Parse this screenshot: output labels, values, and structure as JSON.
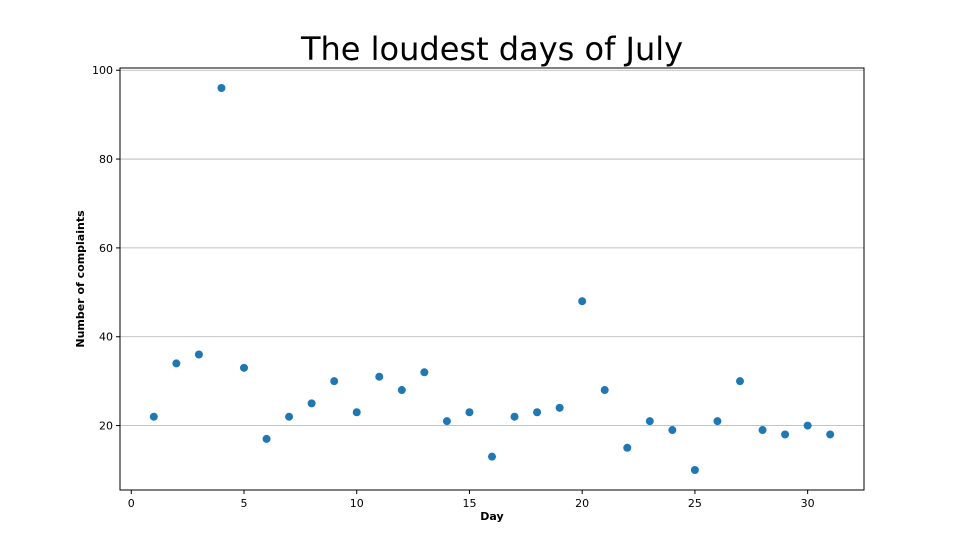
{
  "chart_data": {
    "type": "scatter",
    "title": "The loudest days of July",
    "xlabel": "Day",
    "ylabel": "Number of complaints",
    "xlim": [
      -0.5,
      32.5
    ],
    "ylim": [
      5.5,
      100.5
    ],
    "xticks": [
      0,
      5,
      10,
      15,
      20,
      25,
      30
    ],
    "yticks": [
      20,
      40,
      60,
      80,
      100
    ],
    "grid": "horizontal",
    "marker_color": "#1f77b4",
    "x": [
      1,
      2,
      3,
      4,
      5,
      6,
      7,
      8,
      9,
      10,
      11,
      12,
      13,
      14,
      15,
      16,
      17,
      18,
      19,
      20,
      21,
      22,
      23,
      24,
      25,
      26,
      27,
      28,
      29,
      30,
      31
    ],
    "y": [
      22,
      34,
      36,
      96,
      33,
      17,
      22,
      25,
      30,
      23,
      31,
      28,
      32,
      21,
      23,
      13,
      22,
      23,
      24,
      48,
      28,
      15,
      21,
      19,
      10,
      21,
      30,
      19,
      18,
      20,
      18
    ]
  }
}
